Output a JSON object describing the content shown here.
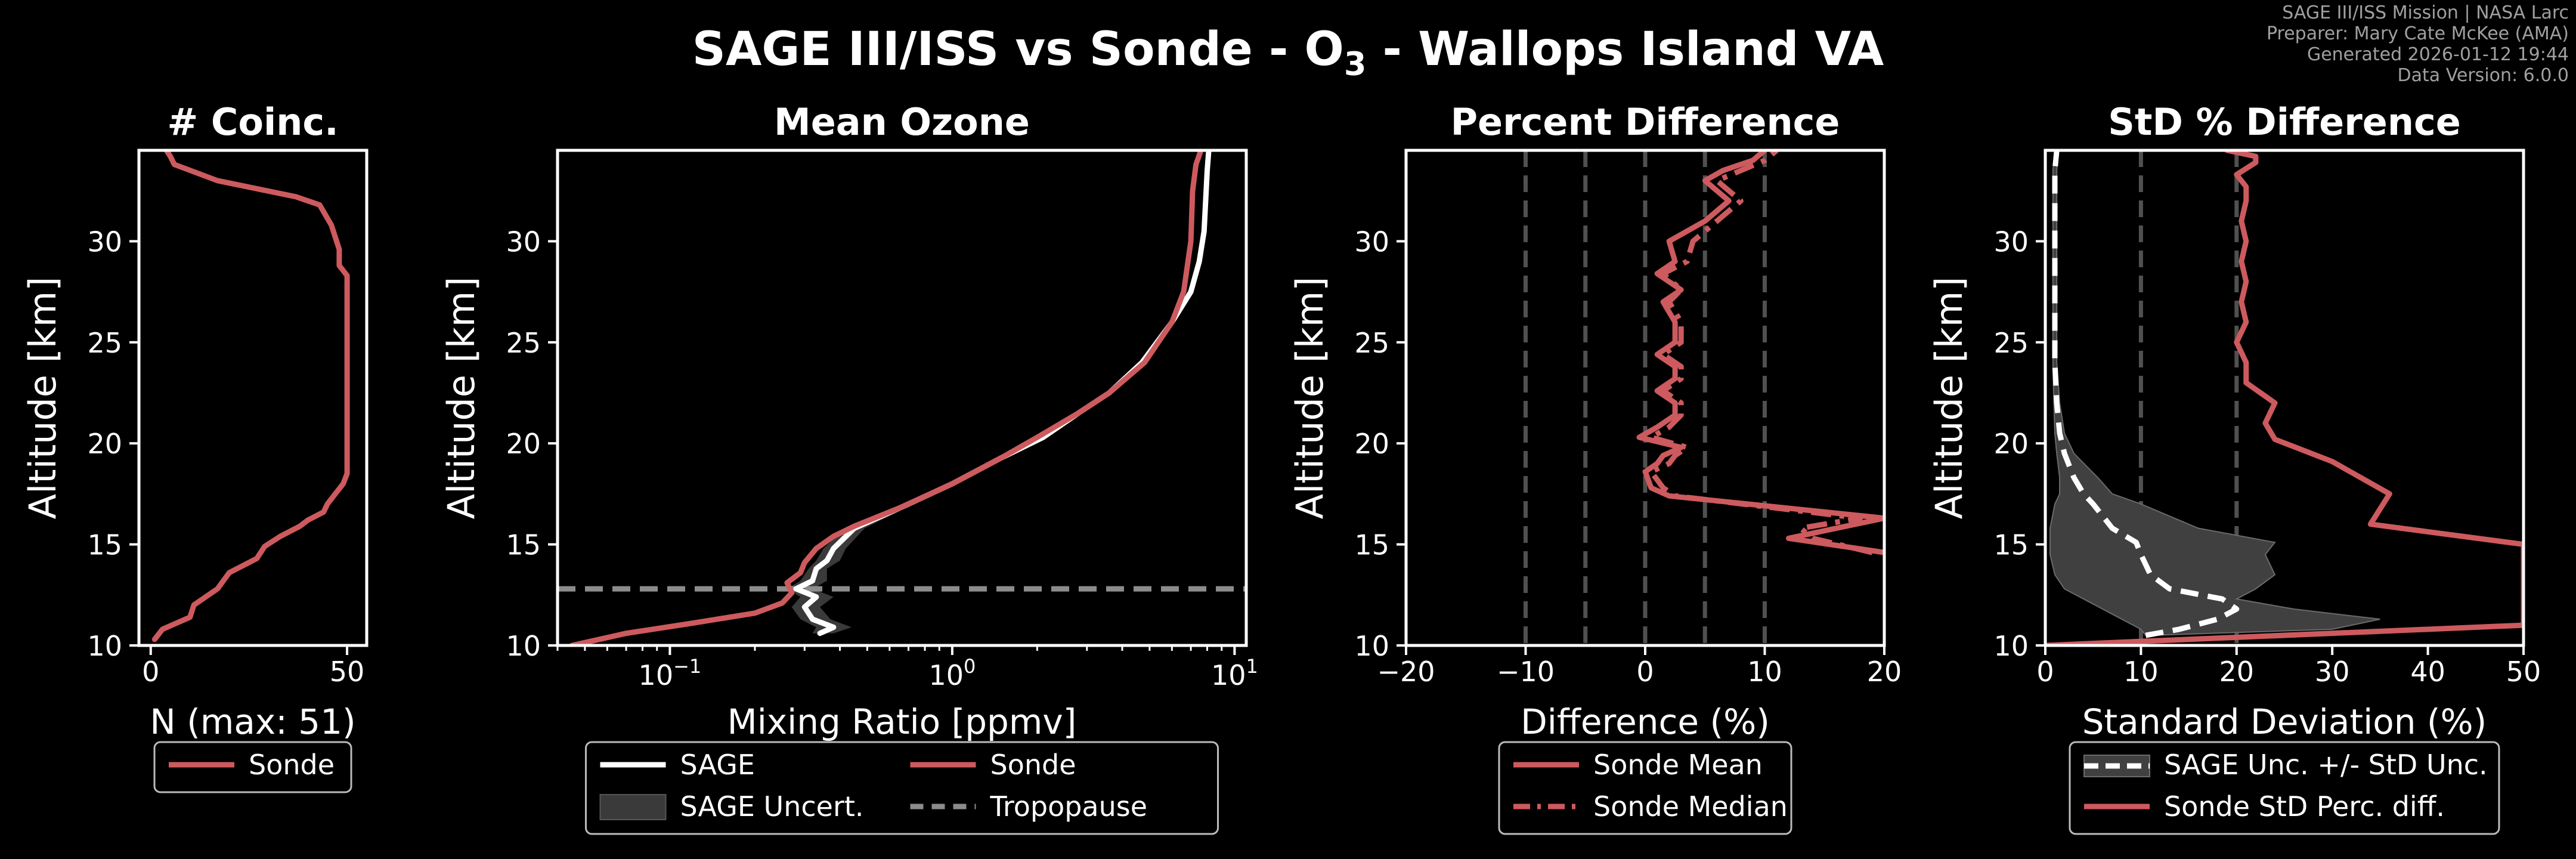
{
  "figure": {
    "title_prefix": "SAGE III/ISS vs Sonde - O",
    "title_sub": "3",
    "title_suffix": " - Wallops Island VA",
    "meta": {
      "mission": "SAGE III/ISS Mission | NASA Larc",
      "preparer": "Preparer: Mary Cate McKee (AMA)",
      "generated": "Generated 2026-01-12 19:44",
      "version": "Data Version: 6.0.0"
    }
  },
  "colors": {
    "sonde": "#cd5a5e",
    "sage": "#ffffff",
    "uncert": "#3a3a3a",
    "tropopause": "#8c8c8c",
    "guide": "#505050"
  },
  "chart_data": [
    {
      "type": "line",
      "title": "# Coinc.",
      "xlabel": "N (max: 51)",
      "ylabel": "",
      "xlim": [
        -3,
        55
      ],
      "ylim": [
        10,
        34.5
      ],
      "xticks": [
        0,
        50
      ],
      "xtick_labels": [
        "0",
        "50"
      ],
      "yticks": [
        10,
        15,
        20,
        25,
        30
      ],
      "ytick_labels": [
        "10",
        "15",
        "20",
        "25",
        "30"
      ],
      "legend": [
        "Sonde"
      ],
      "series": [
        {
          "name": "Sonde",
          "x": [
            1,
            3,
            10,
            11,
            17,
            20,
            27,
            29,
            33,
            38,
            40,
            44,
            45,
            47,
            49,
            50,
            50,
            50,
            50,
            48,
            48,
            46,
            43,
            37,
            17,
            6,
            5,
            4
          ],
          "y": [
            10.3,
            10.8,
            11.4,
            12.0,
            12.8,
            13.6,
            14.3,
            14.9,
            15.4,
            15.9,
            16.2,
            16.6,
            17.0,
            17.5,
            18.0,
            18.5,
            20,
            25,
            28.3,
            28.8,
            29.6,
            30.8,
            31.8,
            32.2,
            33.0,
            33.8,
            34.2,
            34.5
          ]
        }
      ]
    },
    {
      "type": "line",
      "title": "Mean Ozone",
      "xlabel": "Mixing Ratio [ppmv]",
      "ylabel": "Altitude [km]",
      "xscale": "log",
      "xlim": [
        0.04,
        11
      ],
      "ylim": [
        10,
        34.5
      ],
      "xtick_labels": [
        "10^-1",
        "10^0",
        "10^1"
      ],
      "yticks": [
        10,
        15,
        20,
        25,
        30
      ],
      "ytick_labels": [
        "10",
        "15",
        "20",
        "25",
        "30"
      ],
      "legend": [
        "SAGE",
        "SAGE Uncert.",
        "Sonde",
        "Tropopause"
      ],
      "tropopause_km": 12.8,
      "series": [
        {
          "name": "SAGE",
          "x": [
            0.34,
            0.38,
            0.32,
            0.3,
            0.33,
            0.28,
            0.32,
            0.33,
            0.36,
            0.38,
            0.45,
            0.7,
            1.0,
            1.5,
            2.1,
            2.8,
            3.6,
            4.7,
            6.0,
            7.0,
            7.5,
            7.8,
            7.9,
            8.0,
            8.1
          ],
          "y": [
            10.6,
            10.9,
            11.3,
            11.9,
            12.4,
            12.8,
            13.2,
            13.8,
            14.2,
            14.8,
            15.8,
            17.0,
            18.0,
            19.3,
            20.3,
            21.5,
            22.5,
            24.0,
            26.0,
            27.5,
            29.0,
            30.5,
            32.0,
            33.5,
            34.5
          ]
        },
        {
          "name": "SAGE Uncert. low",
          "x": [
            0.32,
            0.33,
            0.29,
            0.27,
            0.29,
            0.26,
            0.29,
            0.31,
            0.33,
            0.35,
            0.42,
            0.67,
            0.97,
            1.45,
            2.05,
            2.75,
            3.55,
            4.65,
            5.95,
            6.95,
            7.45,
            7.75,
            7.85,
            7.95,
            8.05
          ],
          "y": [
            10.6,
            10.9,
            11.3,
            11.9,
            12.4,
            12.8,
            13.2,
            13.8,
            14.2,
            14.8,
            15.8,
            17.0,
            18.0,
            19.3,
            20.3,
            21.5,
            22.5,
            24.0,
            26.0,
            27.5,
            29.0,
            30.5,
            32.0,
            33.5,
            34.5
          ]
        },
        {
          "name": "SAGE Uncert. high",
          "x": [
            0.38,
            0.44,
            0.37,
            0.34,
            0.38,
            0.32,
            0.36,
            0.36,
            0.4,
            0.42,
            0.49,
            0.73,
            1.03,
            1.55,
            2.15,
            2.85,
            3.65,
            4.75,
            6.05,
            7.05,
            7.55,
            7.85,
            7.95,
            8.05,
            8.15
          ],
          "y": [
            10.6,
            10.9,
            11.3,
            11.9,
            12.4,
            12.8,
            13.2,
            13.8,
            14.2,
            14.8,
            15.8,
            17.0,
            18.0,
            19.3,
            20.3,
            21.5,
            22.5,
            24.0,
            26.0,
            27.5,
            29.0,
            30.5,
            32.0,
            33.5,
            34.5
          ]
        },
        {
          "name": "Sonde",
          "x": [
            0.045,
            0.07,
            0.12,
            0.2,
            0.25,
            0.27,
            0.26,
            0.29,
            0.3,
            0.33,
            0.38,
            0.45,
            0.65,
            1.0,
            1.5,
            2.0,
            2.8,
            3.6,
            4.8,
            6.0,
            6.6,
            7.0,
            7.1,
            7.3,
            7.6
          ],
          "y": [
            10.0,
            10.6,
            11.1,
            11.6,
            12.1,
            12.6,
            13.1,
            13.6,
            14.1,
            14.8,
            15.4,
            15.9,
            16.8,
            18.0,
            19.3,
            20.3,
            21.5,
            22.5,
            24.0,
            26.0,
            27.5,
            30.0,
            32.5,
            33.8,
            34.5
          ]
        }
      ]
    },
    {
      "type": "line",
      "title": "Percent Difference",
      "xlabel": "Difference (%)",
      "ylabel": "Altitude [km]",
      "xlim": [
        -20,
        20
      ],
      "ylim": [
        10,
        34.5
      ],
      "xticks": [
        -20,
        -10,
        0,
        10,
        20
      ],
      "xtick_labels": [
        "−20",
        "−10",
        "0",
        "10",
        "20"
      ],
      "yticks": [
        10,
        15,
        20,
        25,
        30
      ],
      "ytick_labels": [
        "10",
        "15",
        "20",
        "25",
        "30"
      ],
      "guides_x": [
        -10,
        -5,
        0,
        5,
        10
      ],
      "legend": [
        "Sonde Mean",
        "Sonde Median"
      ],
      "series": [
        {
          "name": "Sonde Mean",
          "x": [
            20,
            12,
            16,
            20,
            2,
            0.5,
            0,
            1,
            1.5,
            3,
            -0.5,
            1,
            2.5,
            2.5,
            1,
            2.5,
            2.5,
            1,
            2.5,
            2.5,
            1.5,
            3,
            1,
            2.5,
            2,
            5,
            7,
            5,
            6.5,
            9,
            10
          ],
          "x_note": "",
          "y": [
            14.6,
            15.3,
            15.8,
            16.3,
            17.4,
            17.8,
            18.6,
            19.0,
            19.4,
            19.8,
            20.3,
            20.8,
            21.4,
            22.0,
            22.6,
            23.2,
            23.8,
            24.4,
            25.0,
            26.0,
            27.0,
            27.6,
            28.4,
            29.0,
            30.0,
            31.0,
            32.0,
            33.0,
            33.5,
            34.0,
            34.5
          ]
        },
        {
          "name": "Sonde Median",
          "x": [
            19,
            14,
            13,
            18,
            2.5,
            1.5,
            0.5,
            2,
            2.5,
            3.5,
            0.5,
            2,
            3,
            3,
            1.5,
            3,
            3,
            1.5,
            3,
            3,
            2,
            3,
            1.5,
            3.5,
            4,
            6,
            8,
            6,
            8,
            10,
            11
          ],
          "y": [
            14.6,
            15.3,
            15.8,
            16.3,
            17.4,
            17.8,
            18.6,
            19.0,
            19.4,
            19.8,
            20.3,
            20.8,
            21.4,
            22.0,
            22.6,
            23.2,
            23.8,
            24.4,
            25.0,
            26.0,
            27.0,
            27.6,
            28.4,
            29.0,
            30.0,
            31.0,
            32.0,
            33.0,
            33.5,
            34.0,
            34.5
          ]
        }
      ]
    },
    {
      "type": "line",
      "title": "StD % Difference",
      "xlabel": "Standard Deviation (%)",
      "ylabel": "Altitude [km]",
      "xlim": [
        0,
        50
      ],
      "ylim": [
        10,
        34.5
      ],
      "xticks": [
        0,
        10,
        20,
        30,
        40,
        50
      ],
      "xtick_labels": [
        "0",
        "10",
        "20",
        "30",
        "40",
        "50"
      ],
      "yticks": [
        10,
        15,
        20,
        25,
        30
      ],
      "ytick_labels": [
        "10",
        "15",
        "20",
        "25",
        "30"
      ],
      "guides_x": [
        10,
        20
      ],
      "legend": [
        "SAGE Unc. +/- StD Unc.",
        "Sonde StD Perc. diff."
      ],
      "series": [
        {
          "name": "SAGE Unc.",
          "x": [
            10.5,
            14,
            18,
            20,
            18.5,
            13,
            11,
            10,
            9.5,
            7,
            5,
            4,
            3,
            2,
            1.5,
            1.2,
            1,
            1,
            1,
            1,
            1,
            1,
            1.2
          ],
          "y": [
            10.5,
            10.8,
            11.3,
            11.8,
            12.3,
            12.8,
            13.5,
            14.5,
            15.1,
            15.8,
            17.0,
            17.5,
            18.3,
            19.5,
            20.5,
            22.0,
            24.0,
            26.0,
            28.0,
            30.0,
            32.0,
            33.5,
            34.5
          ]
        },
        {
          "name": "SAGE Unc. low",
          "x": [
            10.5,
            10,
            8,
            6,
            4,
            2,
            1,
            0.5,
            0.5,
            0.5,
            1,
            1.5,
            1.5,
            1.2,
            1,
            0.9,
            0.8,
            0.8,
            0.8,
            0.8,
            0.8,
            0.8,
            1.0
          ],
          "y": [
            10.5,
            10.8,
            11.3,
            11.8,
            12.3,
            12.8,
            13.5,
            14.5,
            15.1,
            15.8,
            17.0,
            17.5,
            18.3,
            19.5,
            20.5,
            22.0,
            24.0,
            26.0,
            28.0,
            30.0,
            32.0,
            33.5,
            34.5
          ]
        },
        {
          "name": "SAGE Unc. high",
          "x": [
            11,
            30,
            35,
            26,
            20,
            22,
            24,
            23,
            24,
            16,
            10,
            7,
            5.5,
            3,
            2,
            1.5,
            1.2,
            1.2,
            1.2,
            1.2,
            1.2,
            1.2,
            1.4
          ],
          "y": [
            10.5,
            10.8,
            11.3,
            11.8,
            12.3,
            12.8,
            13.5,
            14.5,
            15.1,
            15.8,
            17.0,
            17.5,
            18.3,
            19.5,
            20.5,
            22.0,
            24.0,
            26.0,
            28.0,
            30.0,
            32.0,
            33.5,
            34.5
          ]
        },
        {
          "name": "Sonde StD Perc. diff.",
          "x": [
            0,
            50,
            50,
            34,
            36,
            33,
            30,
            24,
            23,
            24,
            21,
            21,
            20,
            21,
            20.5,
            21,
            20.5,
            21,
            20.5,
            21,
            21,
            20,
            22,
            22,
            19
          ],
          "y": [
            10.0,
            11.0,
            15.0,
            16.0,
            17.5,
            18.3,
            19.1,
            20.2,
            21.0,
            22.0,
            23.0,
            24.0,
            25.0,
            26.0,
            27.0,
            28.0,
            29.0,
            30.0,
            31.0,
            32.0,
            32.7,
            33.3,
            33.9,
            34.2,
            34.5
          ]
        }
      ]
    }
  ]
}
